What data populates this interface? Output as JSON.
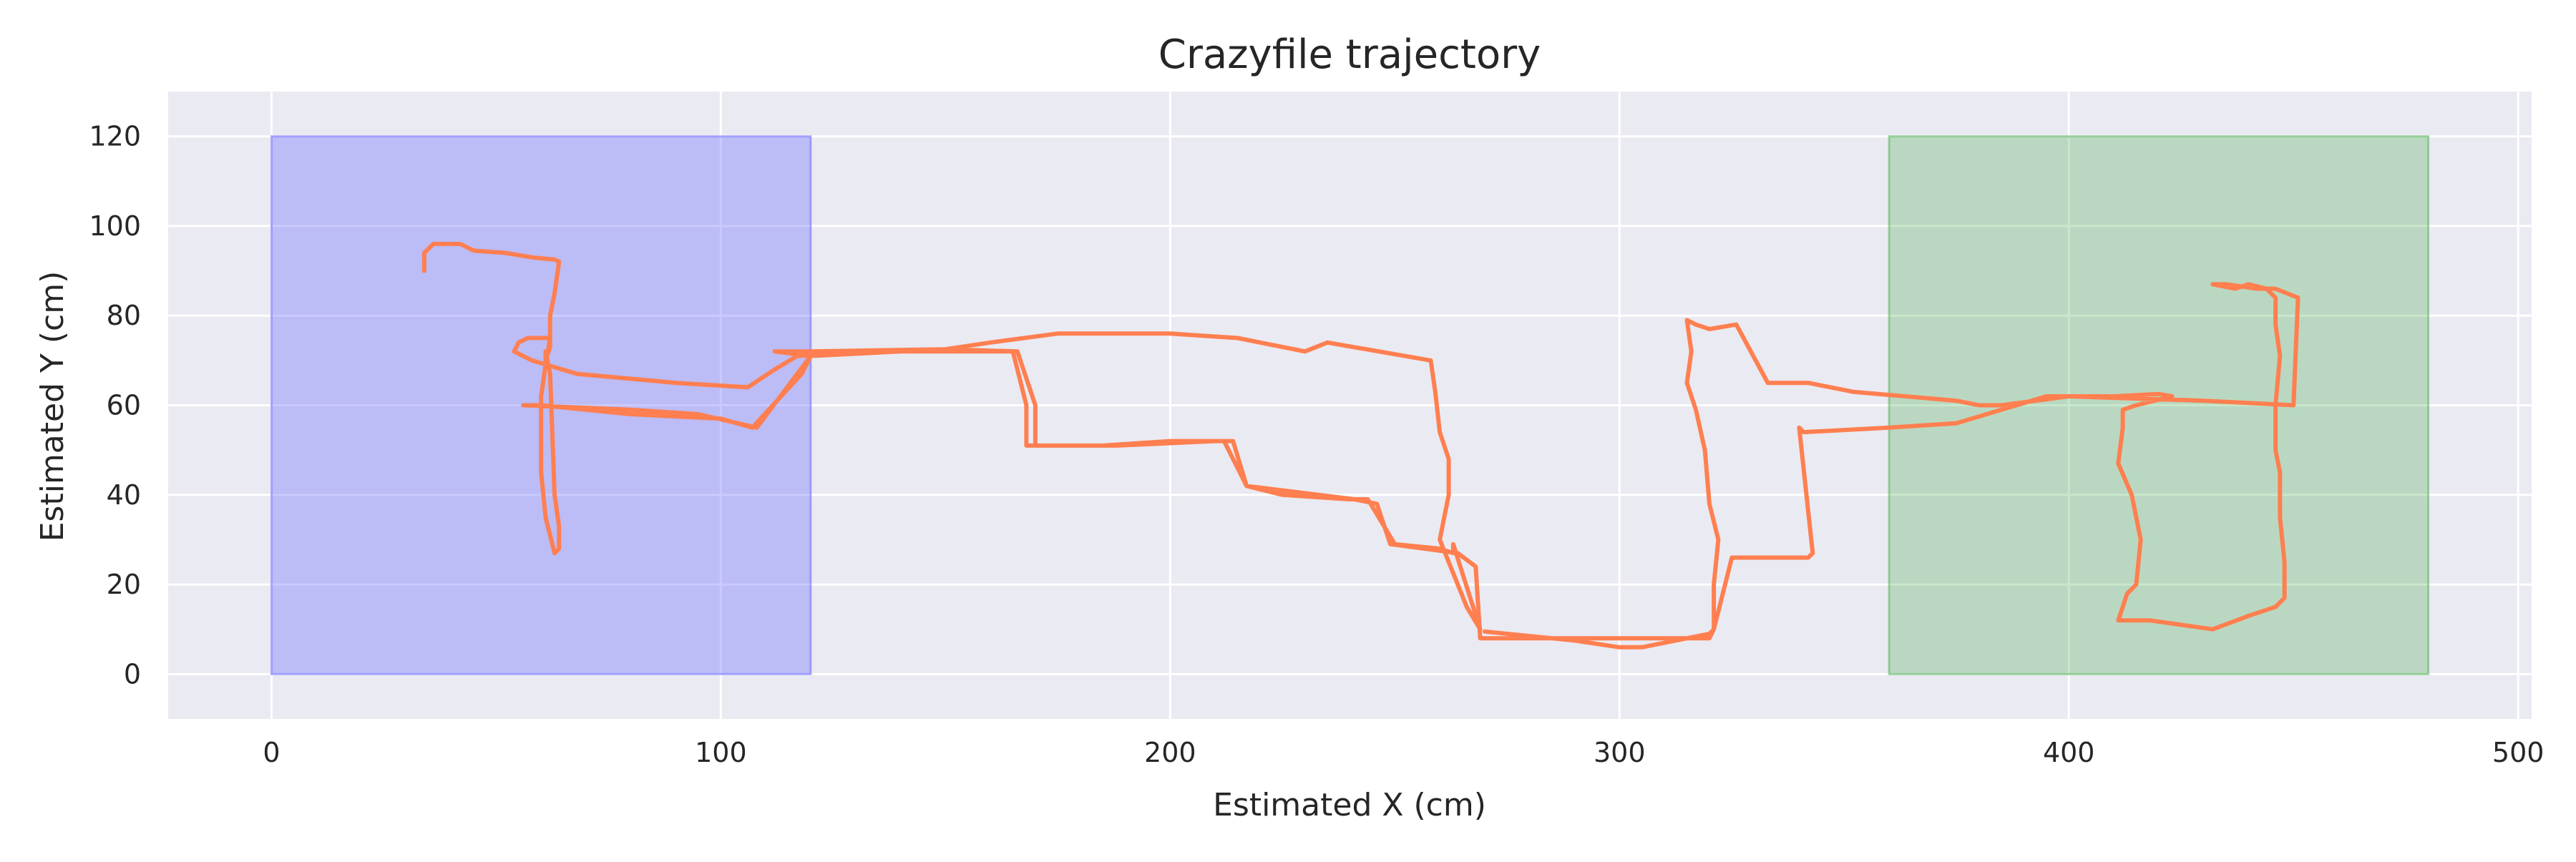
{
  "chart_data": {
    "type": "line",
    "title": "Crazyfile trajectory",
    "xlabel": "Estimated X (cm)",
    "ylabel": "Estimated Y (cm)",
    "xlim": [
      -23,
      503
    ],
    "ylim": [
      -10,
      130
    ],
    "xticks": [
      0,
      100,
      200,
      300,
      400,
      500
    ],
    "yticks": [
      0,
      20,
      40,
      60,
      80,
      100,
      120
    ],
    "grid": true,
    "background_color": "#eaeaf2",
    "regions": [
      {
        "x0": 0,
        "x1": 120,
        "y0": 0,
        "y1": 120,
        "color": "#6666ff",
        "opacity": 0.35
      },
      {
        "x0": 360,
        "x1": 480,
        "y0": 0,
        "y1": 120,
        "color": "#4caf50",
        "opacity": 0.3
      }
    ],
    "series": [
      {
        "color": "#ff7f50",
        "points": [
          [
            34,
            90
          ],
          [
            34,
            94
          ],
          [
            36,
            96
          ],
          [
            42,
            96
          ],
          [
            45,
            94.5
          ],
          [
            52,
            94
          ],
          [
            58,
            93
          ],
          [
            63,
            92.5
          ],
          [
            64,
            92
          ],
          [
            63,
            85
          ],
          [
            62,
            80
          ],
          [
            62,
            73
          ],
          [
            61,
            70
          ],
          [
            61,
            72
          ],
          [
            62,
            67
          ],
          [
            63,
            40
          ],
          [
            64,
            33
          ],
          [
            64,
            28
          ],
          [
            63,
            27
          ],
          [
            61,
            35
          ],
          [
            60,
            45
          ],
          [
            60,
            55
          ],
          [
            60,
            62
          ],
          [
            61,
            69
          ],
          [
            62,
            75
          ],
          [
            57,
            75
          ],
          [
            55,
            74
          ],
          [
            54,
            72
          ],
          [
            58,
            70
          ],
          [
            68,
            67
          ],
          [
            90,
            65
          ],
          [
            106,
            64
          ],
          [
            112,
            68
          ],
          [
            117,
            71
          ],
          [
            130,
            72
          ],
          [
            150,
            72.5
          ],
          [
            166,
            72
          ],
          [
            170,
            60
          ],
          [
            170,
            51
          ],
          [
            185,
            51
          ],
          [
            200,
            52
          ],
          [
            212,
            52
          ],
          [
            217,
            42
          ],
          [
            225,
            40
          ],
          [
            240,
            39
          ],
          [
            244,
            39
          ],
          [
            250,
            29
          ],
          [
            260,
            28
          ],
          [
            263,
            27
          ],
          [
            263,
            29
          ],
          [
            269,
            10
          ],
          [
            266,
            15
          ],
          [
            260,
            30
          ],
          [
            262,
            40
          ],
          [
            262,
            48
          ],
          [
            260,
            54
          ],
          [
            259,
            63
          ],
          [
            258,
            70
          ],
          [
            235,
            74
          ],
          [
            230,
            72
          ],
          [
            215,
            75
          ],
          [
            200,
            76
          ],
          [
            185,
            76
          ],
          [
            175,
            76
          ],
          [
            160,
            74
          ],
          [
            150,
            72.5
          ],
          [
            120,
            72
          ],
          [
            112,
            72
          ],
          [
            120,
            71
          ],
          [
            108,
            55
          ],
          [
            95,
            58
          ],
          [
            80,
            59
          ],
          [
            56,
            60
          ],
          [
            60,
            60
          ],
          [
            80,
            58
          ],
          [
            100,
            57
          ],
          [
            107,
            55
          ],
          [
            118,
            67
          ],
          [
            120,
            71
          ],
          [
            140,
            72
          ],
          [
            165,
            72
          ],
          [
            168,
            60
          ],
          [
            168,
            51
          ],
          [
            188,
            51
          ],
          [
            210,
            52
          ],
          [
            214,
            52
          ],
          [
            217,
            42
          ],
          [
            241,
            39
          ],
          [
            246,
            38
          ],
          [
            249,
            29
          ],
          [
            264,
            27
          ],
          [
            268,
            24
          ],
          [
            269,
            8
          ],
          [
            290,
            8
          ],
          [
            300,
            8
          ],
          [
            320,
            8
          ],
          [
            321,
            10
          ],
          [
            325,
            26
          ],
          [
            342,
            26
          ],
          [
            343,
            27
          ],
          [
            340,
            55
          ],
          [
            341,
            54
          ],
          [
            360,
            55
          ],
          [
            375,
            56
          ],
          [
            385,
            59
          ],
          [
            395,
            62
          ],
          [
            402,
            62
          ],
          [
            410,
            62
          ],
          [
            420,
            62.5
          ],
          [
            423,
            62
          ],
          [
            415,
            60
          ],
          [
            412,
            59
          ],
          [
            412,
            55
          ],
          [
            411,
            47
          ],
          [
            414,
            40
          ],
          [
            416,
            30
          ],
          [
            415,
            20
          ],
          [
            413,
            18
          ],
          [
            412,
            15
          ],
          [
            411,
            12
          ],
          [
            418,
            12
          ],
          [
            432,
            10
          ],
          [
            440,
            13
          ],
          [
            446,
            15
          ],
          [
            448,
            17
          ],
          [
            448,
            25
          ],
          [
            447,
            35
          ],
          [
            447,
            42
          ],
          [
            447,
            45
          ],
          [
            446,
            50
          ],
          [
            446,
            60
          ],
          [
            447,
            71
          ],
          [
            446,
            78
          ],
          [
            446,
            84
          ],
          [
            444,
            86
          ],
          [
            440,
            87
          ],
          [
            437,
            86
          ],
          [
            432,
            87
          ],
          [
            435,
            87
          ],
          [
            442,
            86
          ],
          [
            446,
            86
          ],
          [
            451,
            84
          ],
          [
            450,
            60
          ],
          [
            430,
            61
          ],
          [
            400,
            62
          ],
          [
            385,
            60
          ],
          [
            380,
            60
          ],
          [
            375,
            61
          ],
          [
            352,
            63
          ],
          [
            342,
            65
          ],
          [
            333,
            65
          ],
          [
            326,
            78
          ],
          [
            320,
            77
          ],
          [
            317,
            78
          ],
          [
            315,
            79
          ],
          [
            316,
            72
          ],
          [
            315,
            65
          ],
          [
            317,
            59
          ],
          [
            319,
            50
          ],
          [
            320,
            38
          ],
          [
            322,
            30
          ],
          [
            321,
            20
          ],
          [
            321,
            10
          ],
          [
            320,
            9
          ],
          [
            305,
            6
          ],
          [
            300,
            6
          ],
          [
            290,
            7.5
          ],
          [
            270,
            9.5
          ]
        ]
      }
    ]
  }
}
